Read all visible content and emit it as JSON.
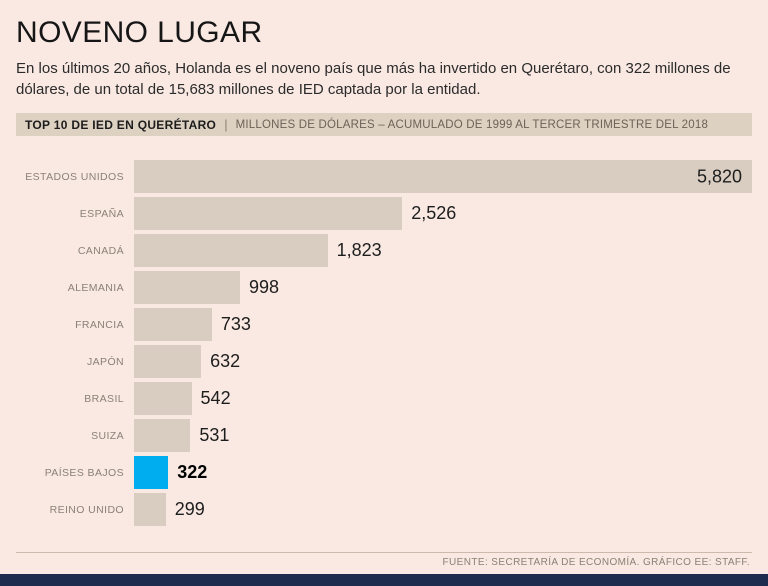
{
  "page": {
    "title": "NOVENO LUGAR",
    "subtitle": "En los últimos 20 años, Holanda es el noveno país que más ha invertido en Querétaro, con 322 millones de dólares, de un total de 15,683 millones de IED captada por la entidad."
  },
  "header_bar": {
    "label": "TOP 10 DE IED EN QUERÉTARO",
    "divider": "|",
    "description": "MILLONES DE DÓLARES – ACUMULADO DE 1999 AL TERCER TRIMESTRE DEL 2018"
  },
  "chart_data": {
    "type": "bar",
    "orientation": "horizontal",
    "title": "TOP 10 DE IED EN QUERÉTARO",
    "units": "MILLONES DE DÓLARES",
    "period": "ACUMULADO DE 1999 AL TERCER TRIMESTRE DEL 2018",
    "categories": [
      "ESTADOS UNIDOS",
      "ESPAÑA",
      "CANADÁ",
      "ALEMANIA",
      "FRANCIA",
      "JAPÓN",
      "BRASIL",
      "SUIZA",
      "PAÍSES BAJOS",
      "REINO UNIDO"
    ],
    "values": [
      5820,
      2526,
      1823,
      998,
      733,
      632,
      542,
      531,
      322,
      299
    ],
    "value_labels": [
      "5,820",
      "2,526",
      "1,823",
      "998",
      "733",
      "632",
      "542",
      "531",
      "322",
      "299"
    ],
    "highlight_index": 8,
    "xlim": [
      0,
      5820
    ],
    "bar_color": "#d9cdc1",
    "highlight_color": "#00aeef",
    "legend": "none",
    "grid": "off"
  },
  "footer": {
    "source": "FUENTE: SECRETARÍA DE ECONOMÍA. GRÁFICO EE: STAFF."
  },
  "colors": {
    "background": "#f9e9e2",
    "header_bg": "#ddd1c2",
    "bar": "#d9cdc1",
    "highlight": "#00aeef",
    "bottom_strip": "#1e2b4f"
  }
}
